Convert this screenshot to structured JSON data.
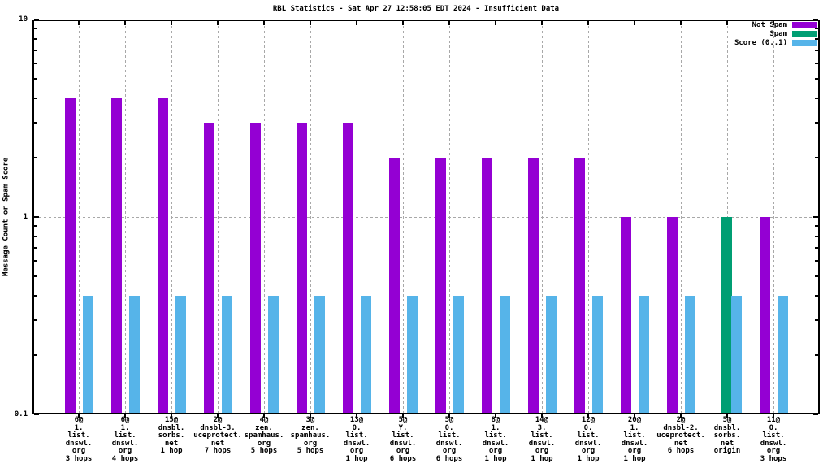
{
  "title": "RBL Statistics - Sat Apr 27 12:58:05 EDT 2024 - Insufficient Data",
  "y_axis": {
    "title": "Message Count or Spam Score",
    "major_ticks": [
      {
        "label": "10",
        "value": 10
      },
      {
        "label": "1",
        "value": 1
      },
      {
        "label": "0.1",
        "value": 0.1
      }
    ]
  },
  "legend": {
    "position": "top-right",
    "items": [
      {
        "label": "Not Spam",
        "color": "#9400d3"
      },
      {
        "label": "Spam",
        "color": "#009e73"
      },
      {
        "label": "Score (0..1)",
        "color": "#56b4e9"
      }
    ]
  },
  "chart_data": {
    "type": "bar",
    "title": "RBL Statistics - Sat Apr 27 12:58:05 EDT 2024 - Insufficient Data",
    "ylabel": "Message Count or Spam Score",
    "xlabel": "",
    "yscale": "log",
    "ylim": [
      0.1,
      10
    ],
    "grid": "dashed vertical at each category, dashed horizontal at y=1",
    "legend_position": "top-right-inside",
    "categories": [
      [
        "6@",
        "1.",
        "list.",
        "dnswl.",
        "org",
        "3 hops"
      ],
      [
        "6@",
        "1.",
        "list.",
        "dnswl.",
        "org",
        "4 hops"
      ],
      [
        "15@",
        "dnsbl.",
        "sorbs.",
        "net",
        "1 hop"
      ],
      [
        "2@",
        "dnsbl-3.",
        "uceprotect.",
        "net",
        "7 hops"
      ],
      [
        "4@",
        "zen.",
        "spamhaus.",
        "org",
        "5 hops"
      ],
      [
        "3@",
        "zen.",
        "spamhaus.",
        "org",
        "5 hops"
      ],
      [
        "13@",
        "0.",
        "list.",
        "dnswl.",
        "org",
        "1 hop"
      ],
      [
        "5@",
        "Y.",
        "list.",
        "dnswl.",
        "org",
        "6 hops"
      ],
      [
        "5@",
        "0.",
        "list.",
        "dnswl.",
        "org",
        "6 hops"
      ],
      [
        "8@",
        "1.",
        "list.",
        "dnswl.",
        "org",
        "1 hop"
      ],
      [
        "14@",
        "3.",
        "list.",
        "dnswl.",
        "org",
        "1 hop"
      ],
      [
        "12@",
        "0.",
        "list.",
        "dnswl.",
        "org",
        "1 hop"
      ],
      [
        "20@",
        "1.",
        "list.",
        "dnswl.",
        "org",
        "1 hop"
      ],
      [
        "2@",
        "dnsbl-2.",
        "uceprotect.",
        "net",
        "6 hops"
      ],
      [
        "5@",
        "dnsbl.",
        "sorbs.",
        "net",
        "origin"
      ],
      [
        "11@",
        "0.",
        "list.",
        "dnswl.",
        "org",
        "3 hops"
      ]
    ],
    "series": [
      {
        "name": "Not Spam",
        "color": "#9400d3",
        "values": [
          4,
          4,
          4,
          3,
          3,
          3,
          3,
          2,
          2,
          2,
          2,
          2,
          1,
          1,
          null,
          1
        ]
      },
      {
        "name": "Spam",
        "color": "#009e73",
        "values": [
          null,
          null,
          null,
          null,
          null,
          null,
          null,
          null,
          null,
          null,
          null,
          null,
          null,
          null,
          1,
          null
        ]
      },
      {
        "name": "Score (0..1)",
        "color": "#56b4e9",
        "values": [
          0.4,
          0.4,
          0.4,
          0.4,
          0.4,
          0.4,
          0.4,
          0.4,
          0.4,
          0.4,
          0.4,
          0.4,
          0.4,
          0.4,
          0.4,
          0.4
        ]
      }
    ]
  }
}
